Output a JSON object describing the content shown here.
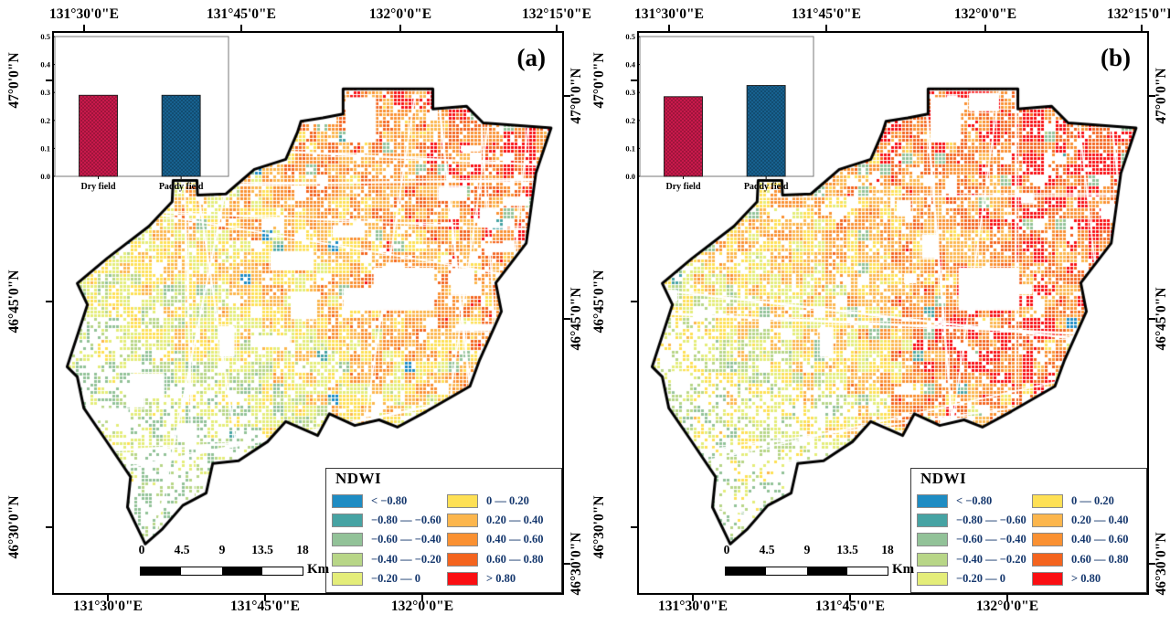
{
  "axes": {
    "top": [
      "131°30'0\"E",
      "131°45'0\"E",
      "132°0'0\"E",
      "132°15'0\"E"
    ],
    "bottom": [
      "131°30'0\"E",
      "131°45'0\"E",
      "132°0'0\"E"
    ],
    "lat": [
      "47°0'0\"N",
      "46°45'0\"N",
      "46°30'0\"N"
    ]
  },
  "panels": [
    {
      "label": "(a)"
    },
    {
      "label": "(b)"
    }
  ],
  "legend": {
    "title": "NDWI",
    "text_color": "#16386e",
    "classes": [
      {
        "label": "< −0.80",
        "color": "#1e8cc3"
      },
      {
        "label": "−0.80 — −0.60",
        "color": "#46a3a3"
      },
      {
        "label": "−0.60 — −0.40",
        "color": "#92c298"
      },
      {
        "label": "−0.40 — −0.20",
        "color": "#b8d687"
      },
      {
        "label": "−0.20 — 0",
        "color": "#e4ed79"
      },
      {
        "label": "0 — 0.20",
        "color": "#fee055"
      },
      {
        "label": "0.20 — 0.40",
        "color": "#fcb64d"
      },
      {
        "label": "0.40 — 0.60",
        "color": "#fa9132"
      },
      {
        "label": "0.60 — 0.80",
        "color": "#f4641e"
      },
      {
        "label": "> 0.80",
        "color": "#fa0e12"
      }
    ]
  },
  "scalebar": {
    "labels": [
      "0",
      "4.5",
      "9",
      "13.5",
      "18"
    ],
    "unit": "Km"
  },
  "chart_data": [
    {
      "type": "bar",
      "panel": "(a)",
      "categories": [
        "Dry field",
        "Paddy field"
      ],
      "values": [
        0.29,
        0.29
      ],
      "ylim": [
        0,
        0.5
      ],
      "yticks": [
        0,
        0.1,
        0.2,
        0.3,
        0.4,
        0.5
      ],
      "bar_colors": [
        "#c8194b",
        "#17618f"
      ],
      "grid": false,
      "legend_position": "none"
    },
    {
      "type": "bar",
      "panel": "(b)",
      "categories": [
        "Dry field",
        "Paddy field"
      ],
      "values": [
        0.285,
        0.325
      ],
      "ylim": [
        0,
        0.5
      ],
      "yticks": [
        0,
        0.1,
        0.2,
        0.3,
        0.4,
        0.5
      ],
      "bar_colors": [
        "#c8194b",
        "#17618f"
      ],
      "grid": false,
      "legend_position": "none"
    }
  ]
}
